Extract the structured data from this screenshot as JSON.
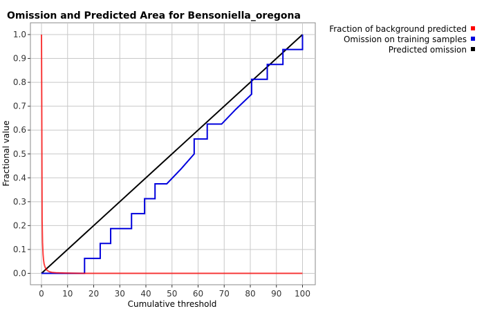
{
  "chart_data": {
    "type": "line",
    "title": "Omission and Predicted Area for Bensoniella_oregona",
    "xlabel": "Cumulative threshold",
    "ylabel": "Fractional value",
    "xlim": [
      0,
      100
    ],
    "ylim": [
      0,
      1.0
    ],
    "xticks": [
      0,
      10,
      20,
      30,
      40,
      50,
      60,
      70,
      80,
      90,
      100
    ],
    "yticks": [
      0.0,
      0.1,
      0.2,
      0.3,
      0.4,
      0.5,
      0.6,
      0.7,
      0.8,
      0.9,
      1.0
    ],
    "xtick_labels": [
      "0",
      "10",
      "20",
      "30",
      "40",
      "50",
      "60",
      "70",
      "80",
      "90",
      "100"
    ],
    "ytick_labels": [
      "0.0",
      "0.1",
      "0.2",
      "0.3",
      "0.4",
      "0.5",
      "0.6",
      "0.7",
      "0.8",
      "0.9",
      "1.0"
    ],
    "grid": true,
    "legend_position": "right",
    "series": [
      {
        "name": "Fraction of background predicted",
        "color": "#ff0000",
        "x": [
          0,
          0.1,
          0.25,
          0.4,
          0.6,
          0.8,
          1.0,
          1.3,
          1.7,
          2.2,
          3.0,
          4.0,
          6.0,
          9.0,
          15.0,
          30.0,
          60.0,
          100.0
        ],
        "y": [
          1.0,
          0.72,
          0.22,
          0.13,
          0.08,
          0.055,
          0.04,
          0.028,
          0.018,
          0.012,
          0.007,
          0.004,
          0.002,
          0.001,
          0.0,
          0.0,
          0.0,
          0.0
        ]
      },
      {
        "name": "Omission on training samples",
        "color": "#0000dd",
        "x": [
          0,
          16.5,
          16.5,
          22.5,
          22.5,
          26.5,
          26.5,
          34.5,
          34.5,
          39.5,
          39.5,
          43.5,
          43.5,
          48.0,
          53.5,
          58.5,
          58.5,
          63.5,
          63.5,
          69.0,
          74.5,
          80.5,
          80.5,
          86.5,
          86.5,
          92.5,
          92.5,
          100.0,
          100.0
        ],
        "y": [
          0.0,
          0.0,
          0.0625,
          0.0625,
          0.125,
          0.125,
          0.1875,
          0.1875,
          0.25,
          0.25,
          0.3125,
          0.3125,
          0.375,
          0.375,
          0.4375,
          0.5,
          0.5625,
          0.5625,
          0.625,
          0.625,
          0.6875,
          0.75,
          0.8125,
          0.8125,
          0.875,
          0.875,
          0.9375,
          0.9375,
          1.0
        ]
      },
      {
        "name": "Predicted omission",
        "color": "#000000",
        "x": [
          0,
          100
        ],
        "y": [
          0,
          1.0
        ]
      }
    ]
  }
}
